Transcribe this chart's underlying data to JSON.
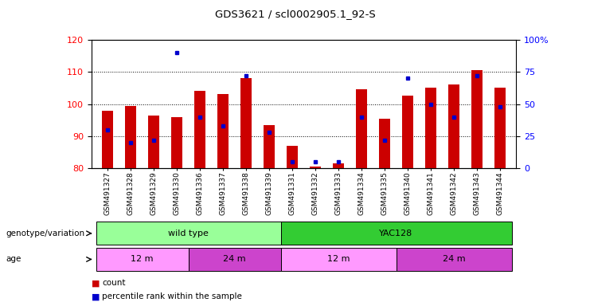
{
  "title": "GDS3621 / scl0002905.1_92-S",
  "samples": [
    "GSM491327",
    "GSM491328",
    "GSM491329",
    "GSM491330",
    "GSM491336",
    "GSM491337",
    "GSM491338",
    "GSM491339",
    "GSM491331",
    "GSM491332",
    "GSM491333",
    "GSM491334",
    "GSM491335",
    "GSM491340",
    "GSM491341",
    "GSM491342",
    "GSM491343",
    "GSM491344"
  ],
  "counts": [
    98,
    99.5,
    96.5,
    96,
    104,
    103,
    108,
    93.5,
    87,
    80.5,
    81.5,
    104.5,
    95.5,
    102.5,
    105,
    106,
    110.5,
    105
  ],
  "percentile_ranks": [
    30,
    20,
    22,
    90,
    40,
    33,
    72,
    28,
    5,
    5,
    5,
    40,
    22,
    70,
    50,
    40,
    72,
    48
  ],
  "ymin": 80,
  "ymax": 120,
  "yticks_left": [
    80,
    90,
    100,
    110,
    120
  ],
  "yticks_right": [
    0,
    25,
    50,
    75,
    100
  ],
  "bar_color": "#cc0000",
  "dot_color": "#0000cc",
  "genotype_groups": [
    {
      "label": "wild type",
      "start": 0,
      "end": 8,
      "color": "#99ff99"
    },
    {
      "label": "YAC128",
      "start": 8,
      "end": 18,
      "color": "#33cc33"
    }
  ],
  "age_groups": [
    {
      "label": "12 m",
      "start": 0,
      "end": 4,
      "color": "#ff99ff"
    },
    {
      "label": "24 m",
      "start": 4,
      "end": 8,
      "color": "#cc44cc"
    },
    {
      "label": "12 m",
      "start": 8,
      "end": 13,
      "color": "#ff99ff"
    },
    {
      "label": "24 m",
      "start": 13,
      "end": 18,
      "color": "#cc44cc"
    }
  ],
  "genotype_label": "genotype/variation",
  "age_label": "age",
  "legend_count_color": "#cc0000",
  "legend_dot_color": "#0000cc"
}
